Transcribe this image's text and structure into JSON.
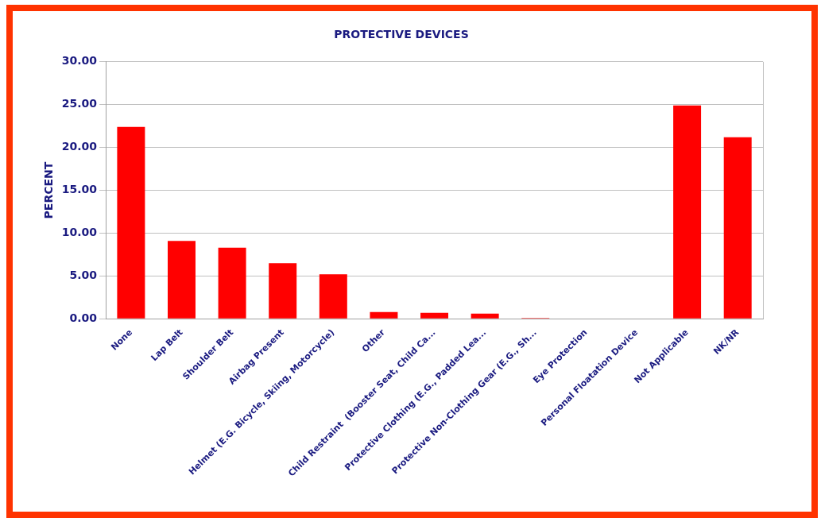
{
  "chart_data": {
    "type": "bar",
    "title": "PROTECTIVE DEVICES",
    "ylabel": "PERCENT",
    "categories": [
      "None",
      "Lap Belt",
      "Shoulder Belt",
      "Airbag Present",
      "Helmet (E.G. Bicycle, Skiing, Motorcycle)",
      "Other",
      "Child Restraint  (Booster Seat, Child Ca...",
      "Protective Clothing (E.G., Padded Lea...",
      "Protective Non-Clothing Gear (E.G., Sh...",
      "Eye Protection",
      "Personal Floatation Device",
      "Not Applicable",
      "NK/NR"
    ],
    "values": [
      22.4,
      9.1,
      8.3,
      6.5,
      5.2,
      0.8,
      0.7,
      0.6,
      0.1,
      0.0,
      null,
      24.9,
      21.2
    ],
    "color": "#ff0000",
    "ylim": [
      0,
      30
    ],
    "yticks": [
      {
        "value": 0,
        "label": "0.00"
      },
      {
        "value": 5,
        "label": "5.00"
      },
      {
        "value": 10,
        "label": "10.00"
      },
      {
        "value": 15,
        "label": "15.00"
      },
      {
        "value": 20,
        "label": "20.00"
      },
      {
        "value": 25,
        "label": "25.00"
      },
      {
        "value": 30,
        "label": "30.00"
      }
    ],
    "grid": "y",
    "legend": false
  }
}
